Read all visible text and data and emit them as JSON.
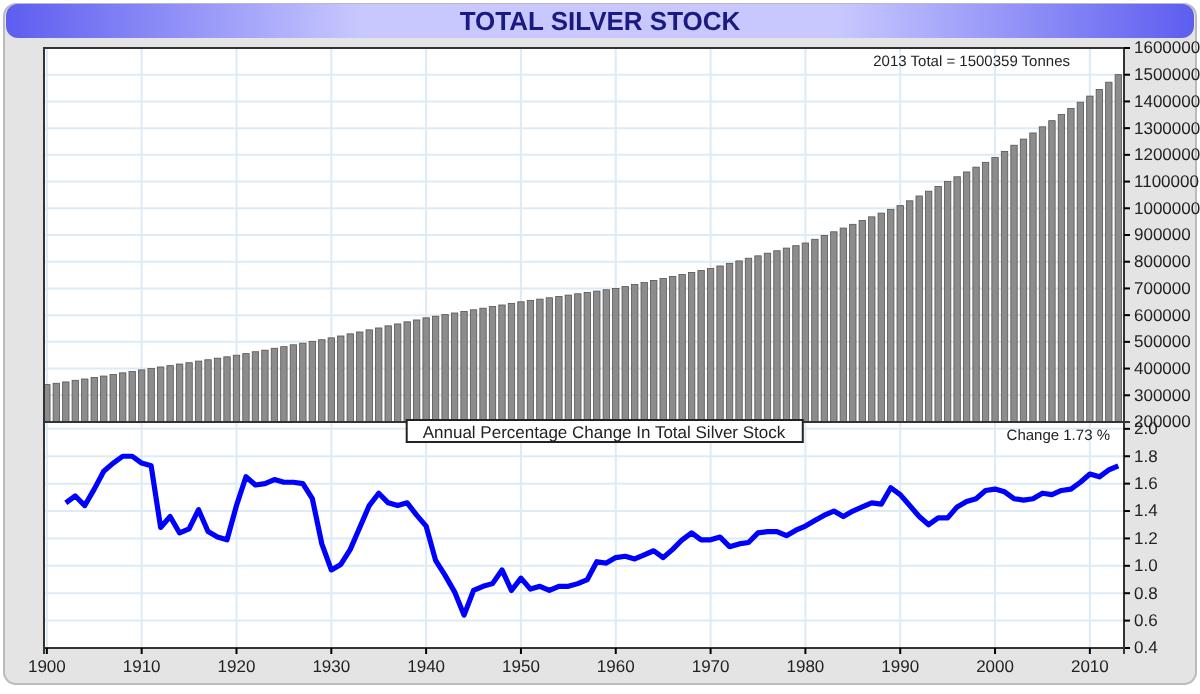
{
  "chart_data": [
    {
      "type": "bar",
      "title": "TOTAL SILVER STOCK",
      "annotations": [
        "2013 Total = 1500359 Tonnes"
      ],
      "x": [
        1900,
        1901,
        1902,
        1903,
        1904,
        1905,
        1906,
        1907,
        1908,
        1909,
        1910,
        1911,
        1912,
        1913,
        1914,
        1915,
        1916,
        1917,
        1918,
        1919,
        1920,
        1921,
        1922,
        1923,
        1924,
        1925,
        1926,
        1927,
        1928,
        1929,
        1930,
        1931,
        1932,
        1933,
        1934,
        1935,
        1936,
        1937,
        1938,
        1939,
        1940,
        1941,
        1942,
        1943,
        1944,
        1945,
        1946,
        1947,
        1948,
        1949,
        1950,
        1951,
        1952,
        1953,
        1954,
        1955,
        1956,
        1957,
        1958,
        1959,
        1960,
        1961,
        1962,
        1963,
        1964,
        1965,
        1966,
        1967,
        1968,
        1969,
        1970,
        1971,
        1972,
        1973,
        1974,
        1975,
        1976,
        1977,
        1978,
        1979,
        1980,
        1981,
        1982,
        1983,
        1984,
        1985,
        1986,
        1987,
        1988,
        1989,
        1990,
        1991,
        1992,
        1993,
        1994,
        1995,
        1996,
        1997,
        1998,
        1999,
        2000,
        2001,
        2002,
        2003,
        2004,
        2005,
        2006,
        2007,
        2008,
        2009,
        2010,
        2011,
        2012,
        2013
      ],
      "values": [
        340000,
        345000,
        350000,
        356000,
        361000,
        367000,
        372000,
        378000,
        384000,
        389000,
        395000,
        400000,
        406000,
        411000,
        417000,
        422000,
        428000,
        433000,
        439000,
        444000,
        450000,
        456000,
        463000,
        469000,
        476000,
        482000,
        489000,
        495000,
        502000,
        508000,
        515000,
        522000,
        530000,
        537000,
        545000,
        552000,
        560000,
        567000,
        575000,
        582000,
        590000,
        596000,
        602000,
        608000,
        614000,
        620000,
        626000,
        632000,
        638000,
        644000,
        650000,
        655000,
        660000,
        665000,
        670000,
        675000,
        680000,
        685000,
        690000,
        695000,
        700000,
        707000,
        715000,
        722000,
        730000,
        737000,
        745000,
        752000,
        760000,
        767000,
        775000,
        784000,
        794000,
        803000,
        813000,
        822000,
        832000,
        841000,
        851000,
        860000,
        870000,
        884000,
        898000,
        912000,
        926000,
        940000,
        954000,
        968000,
        982000,
        996000,
        1010000,
        1028000,
        1046000,
        1064000,
        1082000,
        1100000,
        1118000,
        1136000,
        1154000,
        1172000,
        1190000,
        1213000,
        1236000,
        1259000,
        1282000,
        1305000,
        1328000,
        1351000,
        1374000,
        1397000,
        1420000,
        1445000,
        1472000,
        1500359
      ],
      "color": "#8c8c8c",
      "xlim": [
        1899.7,
        2013.6
      ],
      "xticks": [
        1900,
        1910,
        1920,
        1930,
        1940,
        1950,
        1960,
        1970,
        1980,
        1990,
        2000,
        2010
      ],
      "ylim": [
        200000,
        1600000
      ],
      "yticks": [
        200000,
        300000,
        400000,
        500000,
        600000,
        700000,
        800000,
        900000,
        1000000,
        1100000,
        1200000,
        1300000,
        1400000,
        1500000,
        1600000
      ],
      "grid": true,
      "tick_labels": "y"
    },
    {
      "type": "line",
      "title": "Annual Percentage Change In Total Silver Stock",
      "annotations": [
        "Change 1.73 %"
      ],
      "x": [
        1902,
        1903,
        1904,
        1905,
        1906,
        1907,
        1908,
        1909,
        1910,
        1911,
        1912,
        1913,
        1914,
        1915,
        1916,
        1917,
        1918,
        1919,
        1920,
        1921,
        1922,
        1923,
        1924,
        1925,
        1926,
        1927,
        1928,
        1929,
        1930,
        1931,
        1932,
        1933,
        1934,
        1935,
        1936,
        1937,
        1938,
        1939,
        1940,
        1941,
        1942,
        1943,
        1944,
        1945,
        1946,
        1947,
        1948,
        1949,
        1950,
        1951,
        1952,
        1953,
        1954,
        1955,
        1956,
        1957,
        1958,
        1959,
        1960,
        1961,
        1962,
        1963,
        1964,
        1965,
        1966,
        1967,
        1968,
        1969,
        1970,
        1971,
        1972,
        1973,
        1974,
        1975,
        1976,
        1977,
        1978,
        1979,
        1980,
        1981,
        1982,
        1983,
        1984,
        1985,
        1986,
        1987,
        1988,
        1989,
        1990,
        1991,
        1992,
        1993,
        1994,
        1995,
        1996,
        1997,
        1998,
        1999,
        2000,
        2001,
        2002,
        2003,
        2004,
        2005,
        2006,
        2007,
        2008,
        2009,
        2010,
        2011,
        2012,
        2013
      ],
      "values": [
        1.46,
        1.51,
        1.44,
        1.56,
        1.69,
        1.75,
        1.8,
        1.8,
        1.75,
        1.73,
        1.28,
        1.36,
        1.24,
        1.27,
        1.41,
        1.25,
        1.21,
        1.19,
        1.44,
        1.65,
        1.59,
        1.6,
        1.63,
        1.61,
        1.61,
        1.6,
        1.49,
        1.16,
        0.97,
        1.01,
        1.12,
        1.28,
        1.44,
        1.53,
        1.46,
        1.44,
        1.46,
        1.37,
        1.29,
        1.04,
        0.93,
        0.81,
        0.64,
        0.82,
        0.85,
        0.87,
        0.97,
        0.82,
        0.91,
        0.83,
        0.85,
        0.82,
        0.85,
        0.85,
        0.87,
        0.9,
        1.03,
        1.02,
        1.06,
        1.07,
        1.05,
        1.08,
        1.11,
        1.06,
        1.12,
        1.19,
        1.24,
        1.19,
        1.19,
        1.21,
        1.14,
        1.16,
        1.17,
        1.24,
        1.25,
        1.25,
        1.22,
        1.26,
        1.29,
        1.33,
        1.37,
        1.4,
        1.36,
        1.4,
        1.43,
        1.46,
        1.45,
        1.57,
        1.52,
        1.44,
        1.36,
        1.3,
        1.35,
        1.35,
        1.43,
        1.47,
        1.49,
        1.55,
        1.56,
        1.54,
        1.49,
        1.48,
        1.49,
        1.53,
        1.52,
        1.55,
        1.56,
        1.61,
        1.67,
        1.65,
        1.7,
        1.73
      ],
      "color": "#0000ff",
      "xlim": [
        1899.7,
        2013.6
      ],
      "xticks": [
        1900,
        1910,
        1920,
        1930,
        1940,
        1950,
        1960,
        1970,
        1980,
        1990,
        2000,
        2010
      ],
      "ylim": [
        0.4,
        2.05
      ],
      "yticks": [
        {
          "value": 0.4,
          "label": "0.4"
        },
        {
          "value": 0.6,
          "label": "0.6"
        },
        {
          "value": 0.8,
          "label": "0.8"
        },
        {
          "value": 1,
          "label": "1.0"
        },
        {
          "value": 1.2,
          "label": "1.2"
        },
        {
          "value": 1.4,
          "label": "1.4"
        },
        {
          "value": 1.6,
          "label": "1.6"
        },
        {
          "value": 1.8,
          "label": "1.8"
        },
        {
          "value": 2,
          "label": "2.0"
        }
      ],
      "grid": true,
      "marker": "none",
      "line_style": "solid"
    }
  ]
}
